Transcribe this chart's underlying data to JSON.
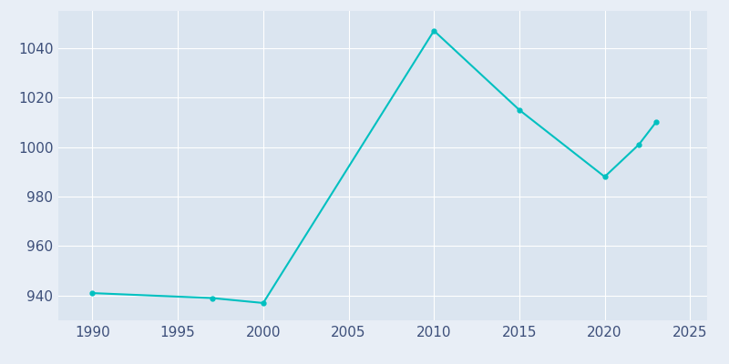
{
  "years": [
    1990,
    1997,
    2000,
    2010,
    2015,
    2020,
    2022,
    2023
  ],
  "population": [
    941,
    939,
    937,
    1047,
    1015,
    988,
    1001,
    1010
  ],
  "line_color": "#00C0C0",
  "bg_color": "#E8EEF6",
  "plot_bg_color": "#DBE5F0",
  "grid_color": "#FFFFFF",
  "tick_color": "#3D4F7A",
  "xlim": [
    1988,
    2026
  ],
  "ylim": [
    930,
    1055
  ],
  "xticks": [
    1990,
    1995,
    2000,
    2005,
    2010,
    2015,
    2020,
    2025
  ],
  "yticks": [
    940,
    960,
    980,
    1000,
    1020,
    1040
  ],
  "linewidth": 1.5,
  "marker": "o",
  "markersize": 3.5
}
